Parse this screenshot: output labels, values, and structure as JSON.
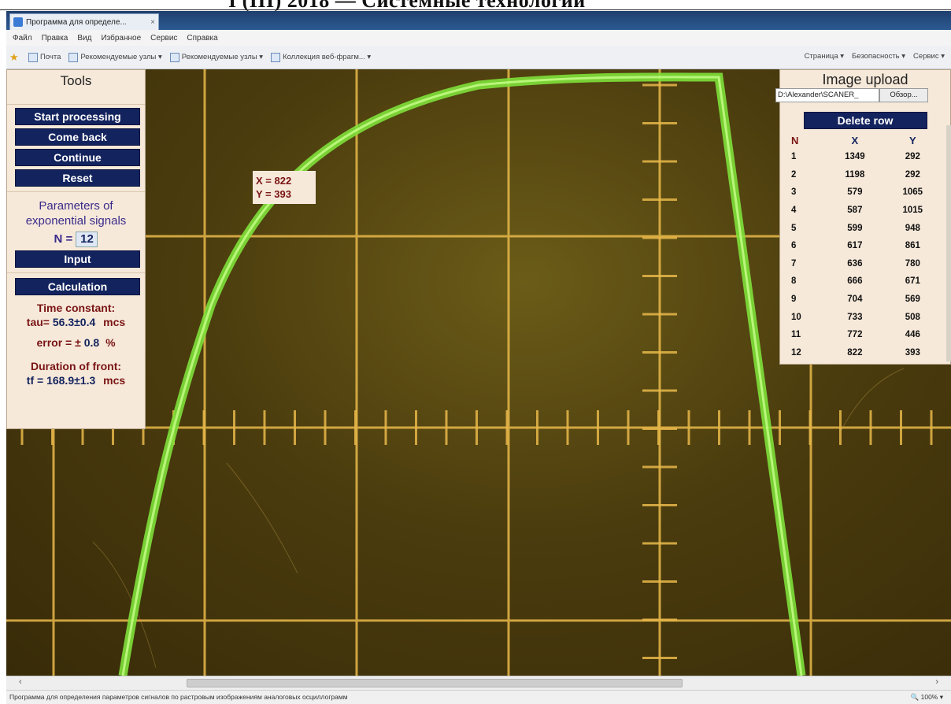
{
  "window": {
    "tab_title": "Программа для определе...",
    "tab_close": "×",
    "menu": [
      "Файл",
      "Правка",
      "Вид",
      "Избранное",
      "Сервис",
      "Справка"
    ],
    "favorites": [
      "Почта",
      "Рекомендуемые узлы ▾",
      "Рекомендуемые узлы ▾",
      "Коллекция веб-фрагм... ▾"
    ],
    "toolbar_right": [
      "Страница ▾",
      "Безопасность ▾",
      "Сервис ▾"
    ],
    "status_text": "Программа для определения параметров сигналов по растровым изображениям аналоговых осциллограмм",
    "zoom": "100%"
  },
  "tools": {
    "title": "Tools",
    "start_processing": "Start processing",
    "come_back": "Come back",
    "continue": "Continue",
    "reset": "Reset",
    "params_line1": "Parameters of",
    "params_line2": "exponential signals",
    "n_label": "N =",
    "n_value": "12",
    "input": "Input",
    "calculation": "Calculation",
    "time_constant_label": "Time constant:",
    "tau_label": "tau=",
    "tau_value": "56.3±0.4",
    "tau_unit": "mcs",
    "error_label": "error = ±",
    "error_value": "0.8",
    "error_unit": "%",
    "front_label": "Duration of front:",
    "tf_label": "tf =",
    "tf_value": "168.9±1.3",
    "tf_unit": "mcs"
  },
  "readout": {
    "x": "X = 822",
    "y": "Y = 393"
  },
  "upload": {
    "title": "Image upload",
    "file_path": "D:\\Alexander\\SCANER_",
    "browse": "Обзор...",
    "delete_row": "Delete row",
    "col_n": "N",
    "col_x": "X",
    "col_y": "Y",
    "rows": [
      {
        "n": "1",
        "x": "1349",
        "y": "292"
      },
      {
        "n": "2",
        "x": "1198",
        "y": "292"
      },
      {
        "n": "3",
        "x": "579",
        "y": "1065"
      },
      {
        "n": "4",
        "x": "587",
        "y": "1015"
      },
      {
        "n": "5",
        "x": "599",
        "y": "948"
      },
      {
        "n": "6",
        "x": "617",
        "y": "861"
      },
      {
        "n": "7",
        "x": "636",
        "y": "780"
      },
      {
        "n": "8",
        "x": "666",
        "y": "671"
      },
      {
        "n": "9",
        "x": "704",
        "y": "569"
      },
      {
        "n": "10",
        "x": "733",
        "y": "508"
      },
      {
        "n": "11",
        "x": "772",
        "y": "446"
      },
      {
        "n": "12",
        "x": "822",
        "y": "393"
      }
    ]
  },
  "colors": {
    "panel_bg": "#f6e9da",
    "button_bg": "#13235e",
    "trace": "#7ee03a",
    "grid": "#e8b84a",
    "label_red": "#7a1414"
  }
}
